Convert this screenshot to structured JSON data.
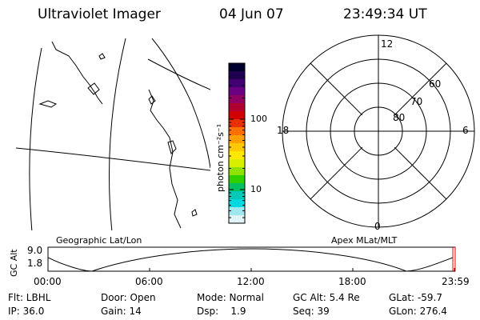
{
  "header": {
    "title": "Ultraviolet Imager",
    "date": "04 Jun 07",
    "time": "23:49:34 UT"
  },
  "map": {
    "label": "Geographic Lat/Lon"
  },
  "polar": {
    "label": "Apex MLat/MLT",
    "mlt_labels": {
      "top": "12",
      "left": "18",
      "right": "6",
      "bottom": "0"
    },
    "lat_labels": [
      "60",
      "70",
      "80"
    ]
  },
  "colorbar": {
    "unit_label": "photon cm⁻²s⁻¹",
    "ticks": [
      {
        "label": "100",
        "value": 100
      },
      {
        "label": "10",
        "value": 10
      }
    ],
    "scale": "log",
    "colors": [
      "#000030",
      "#200050",
      "#400070",
      "#6a0080",
      "#900060",
      "#b00030",
      "#d00000",
      "#e83000",
      "#ff7000",
      "#ffa000",
      "#ffc800",
      "#ffe800",
      "#d8f000",
      "#90e000",
      "#30d000",
      "#00c060",
      "#00c8b8",
      "#00d8e0",
      "#a0e8f0",
      "#e0f4f8"
    ]
  },
  "altitude_plot": {
    "ylabel": "GC Alt",
    "y_ticks": [
      "9.0",
      "1.8"
    ],
    "x_ticks": [
      "00:00",
      "06:00",
      "12:00",
      "18:00",
      "23:59"
    ]
  },
  "status": {
    "row1": [
      "Flt: LBHL",
      "Door: Open",
      "Mode: Normal",
      "GC Alt: 5.4 Re",
      "GLat: -59.7"
    ],
    "row2": [
      "IP: 36.0",
      "Gain: 14",
      "Dsp:    1.9",
      "Seq: 39",
      "GLon: 276.4"
    ]
  }
}
